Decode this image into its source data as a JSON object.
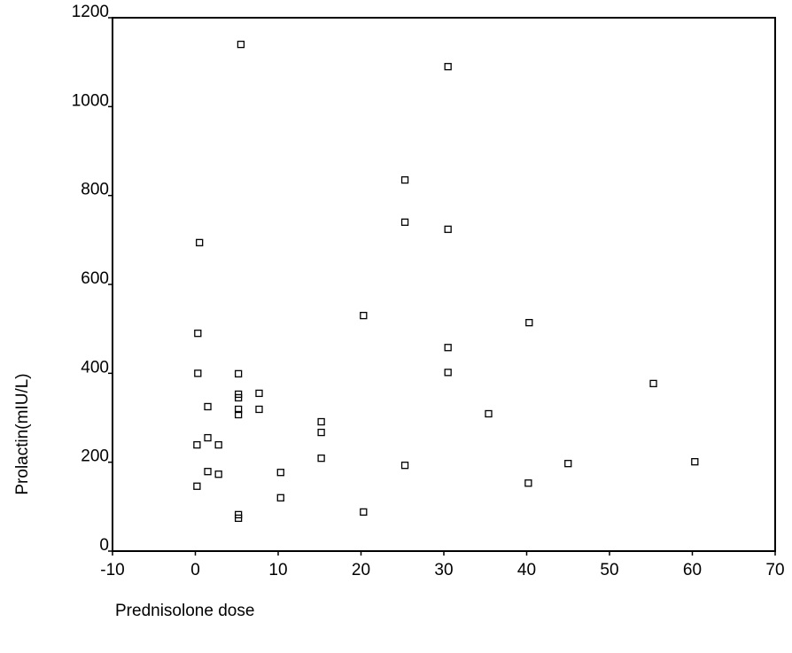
{
  "chart_data": {
    "type": "scatter",
    "x_label": "Prednisolone dose",
    "y_label": "Prolactin(mIU/L)",
    "xlim": [
      -10,
      70
    ],
    "xticks": [
      -10,
      0,
      10,
      20,
      30,
      40,
      50,
      60,
      70
    ],
    "ylim": [
      0,
      1200
    ],
    "yticks": [
      0,
      200,
      400,
      600,
      800,
      1000,
      1200
    ],
    "grid": false,
    "color": "#000000",
    "x": [
      5.5,
      30.5,
      25.3,
      25.3,
      30.5,
      0.5,
      20.3,
      40.3,
      0.3,
      30.5,
      0.3,
      5.2,
      30.5,
      55.3,
      1.5,
      5.2,
      5.2,
      7.7,
      7.7,
      15.2,
      15.2,
      35.4,
      0.2,
      1.5,
      2.8,
      5.2,
      5.2,
      15.2,
      25.3,
      45.0,
      60.3,
      1.5,
      2.8,
      0.2,
      10.3,
      10.3,
      40.2,
      20.3,
      5.2,
      5.2
    ],
    "values": [
      1140,
      1090,
      835,
      740,
      724,
      694,
      530,
      514,
      490,
      458,
      400,
      399,
      402,
      377,
      325,
      353,
      345,
      355,
      319,
      291,
      267,
      309,
      239,
      255,
      239,
      319,
      307,
      209,
      193,
      197,
      201,
      179,
      173,
      146,
      177,
      120,
      153,
      88,
      82,
      74
    ]
  }
}
